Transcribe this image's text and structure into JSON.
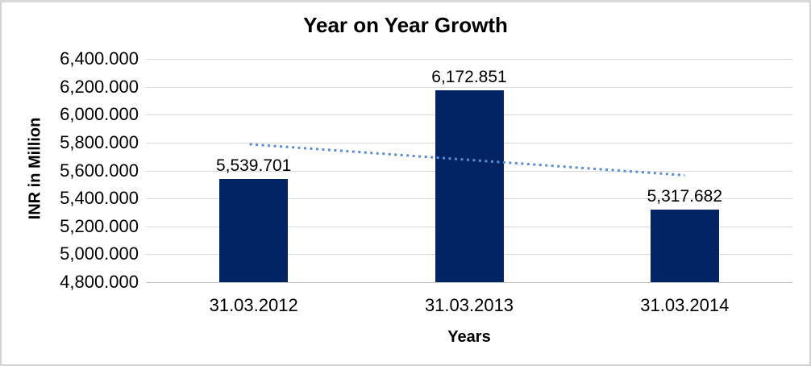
{
  "chart": {
    "title": "Year on Year Growth",
    "y_axis_title": "INR in Million",
    "x_axis_title": "Years",
    "colors": {
      "bar": "#022364",
      "trendline": "#5b8dd3",
      "gridline": "#d9d9d9",
      "axis_line": "#c0c0c0",
      "text": "#000000",
      "background": "#ffffff",
      "frame_border": "#d2d2d2"
    }
  },
  "chart_data": {
    "type": "bar",
    "title": "Year on Year Growth",
    "xlabel": "Years",
    "ylabel": "INR in Million",
    "categories": [
      "31.03.2012",
      "31.03.2013",
      "31.03.2014"
    ],
    "values": [
      5539.701,
      6172.851,
      5317.682
    ],
    "data_labels": [
      "5,539.701",
      "6,172.851",
      "5,317.682"
    ],
    "ylim": [
      4800,
      6400
    ],
    "ytick_values": [
      6400,
      6200,
      6000,
      5800,
      5600,
      5400,
      5200,
      5000,
      4800
    ],
    "ytick_labels": [
      "6,400.000",
      "6,200.000",
      "6,000.000",
      "5,800.000",
      "5,600.000",
      "5,400.000",
      "5,200.000",
      "5,000.000",
      "4,800.000"
    ],
    "grid": true,
    "legend": "none",
    "trendline": {
      "type": "linear",
      "style": "dotted",
      "color": "#5b8dd3",
      "start_value": 5788,
      "end_value": 5566
    }
  }
}
